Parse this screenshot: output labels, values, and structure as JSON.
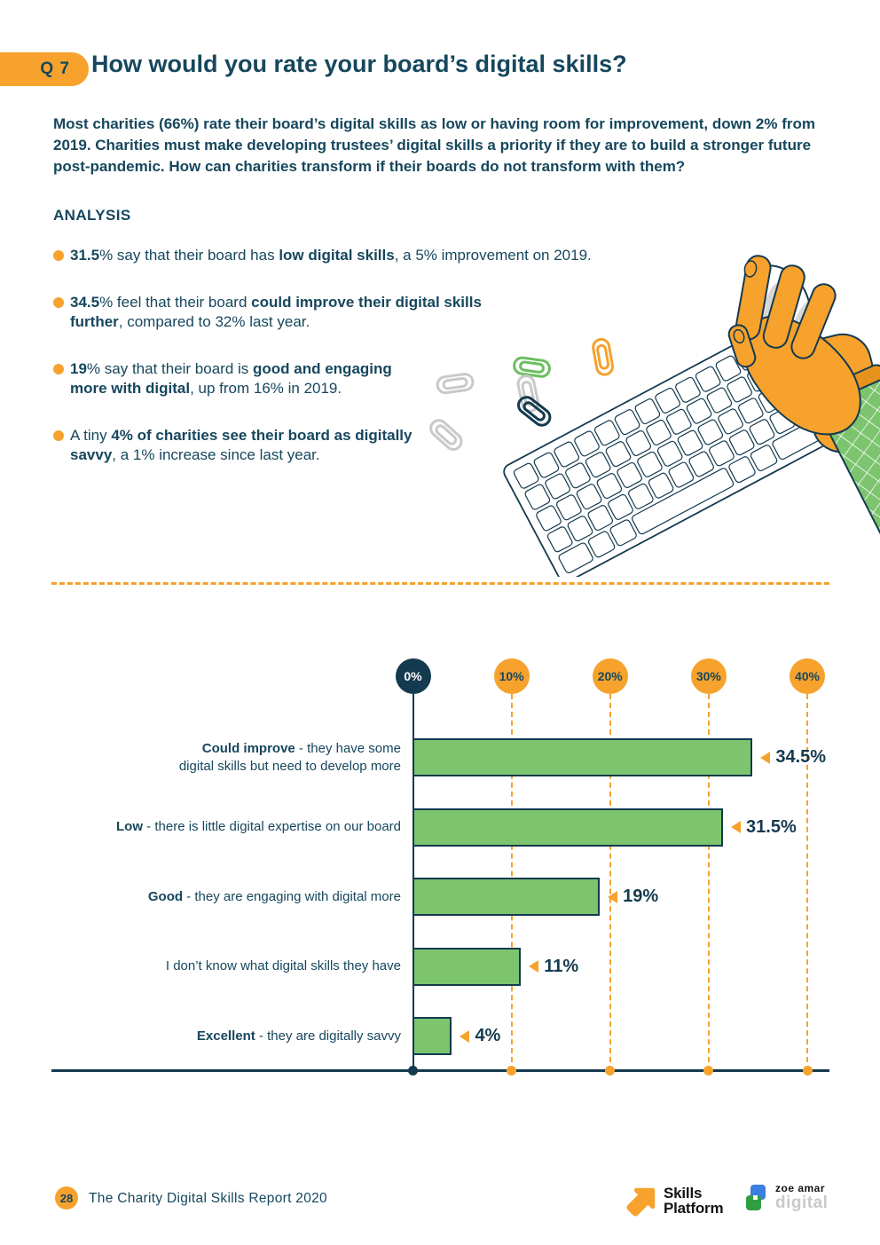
{
  "colors": {
    "accent_orange": "#f6a22d",
    "navy_text": "#16475d",
    "navy_dark": "#143a4f",
    "bar_green": "#7cc46e"
  },
  "header": {
    "question_badge": "Q 7",
    "title": "How would you rate your board’s digital skills?"
  },
  "intro": "Most charities (66%) rate their board’s digital skills as low or having room for improvement, down 2% from 2019. Charities must make developing trustees’ digital skills a priority if they are to build a stronger future post-pandemic. How can charities transform if their boards do not transform with them?",
  "analysis": {
    "heading": "ANALYSIS",
    "bullets": [
      [
        {
          "b": 1,
          "t": "31.5"
        },
        {
          "t": "% say that their board has "
        },
        {
          "b": 1,
          "t": "low digital skills"
        },
        {
          "t": ", a 5% improvement on 2019."
        }
      ],
      [
        {
          "b": 1,
          "t": "34.5"
        },
        {
          "t": "% feel that their board "
        },
        {
          "b": 1,
          "t": "could improve their digital skills"
        },
        {
          "br": 1
        },
        {
          "b": 1,
          "t": "further"
        },
        {
          "t": ", compared to 32% last year."
        }
      ],
      [
        {
          "b": 1,
          "t": "19"
        },
        {
          "t": "% say that their board is "
        },
        {
          "b": 1,
          "t": "good and engaging"
        },
        {
          "br": 1
        },
        {
          "b": 1,
          "t": "more with digital"
        },
        {
          "t": ", up from 16% in 2019."
        }
      ],
      [
        {
          "t": "A tiny "
        },
        {
          "b": 1,
          "t": "4% of charities see their board as digitally"
        },
        {
          "br": 1
        },
        {
          "b": 1,
          "t": "savvy"
        },
        {
          "t": ", a 1% increase since last year."
        }
      ]
    ]
  },
  "illustration": {
    "items": [
      "keyboard",
      "paperclips",
      "hand-with-mouse",
      "green-plaid-sleeve"
    ]
  },
  "chart_data": {
    "type": "bar",
    "orientation": "horizontal",
    "title": "",
    "xlim": [
      0,
      40
    ],
    "grid": "vertical dashed orange, solid navy at zero",
    "x_ticks": [
      {
        "label": "0%",
        "value": 0
      },
      {
        "label": "10%",
        "value": 10
      },
      {
        "label": "20%",
        "value": 20
      },
      {
        "label": "30%",
        "value": 30
      },
      {
        "label": "40%",
        "value": 40
      }
    ],
    "categories": [
      "Could improve - they have some digital skills but need to develop more",
      "Low - there is little digital expertise on our board",
      "Good - they are engaging with digital more",
      "I don’t know what digital skills they have",
      "Excellent - they are digitally savvy"
    ],
    "category_segments": [
      [
        {
          "b": 1,
          "t": "Could improve"
        },
        {
          "t": " - they have some"
        },
        {
          "br": 1
        },
        {
          "t": "digital skills but need to develop more"
        }
      ],
      [
        {
          "b": 1,
          "t": "Low"
        },
        {
          "t": " - there is little digital expertise on our board"
        }
      ],
      [
        {
          "b": 1,
          "t": "Good"
        },
        {
          "t": " - they are engaging with digital more"
        }
      ],
      [
        {
          "t": "I don’t know what digital skills they have"
        }
      ],
      [
        {
          "b": 1,
          "t": "Excellent"
        },
        {
          "t": " - they are digitally savvy"
        }
      ]
    ],
    "values": [
      34.5,
      31.5,
      19,
      11,
      4
    ],
    "value_labels": [
      "34.5%",
      "31.5%",
      "19%",
      "11%",
      "4%"
    ],
    "bar_color": "#7cc46e"
  },
  "footer": {
    "page_number": "28",
    "report_title": "The Charity Digital Skills Report 2020",
    "logo_skills_platform": {
      "line1": "Skills",
      "line2": "Platform"
    },
    "logo_zoe_amar": {
      "line1": "zoe amar",
      "line2": "digital"
    }
  }
}
